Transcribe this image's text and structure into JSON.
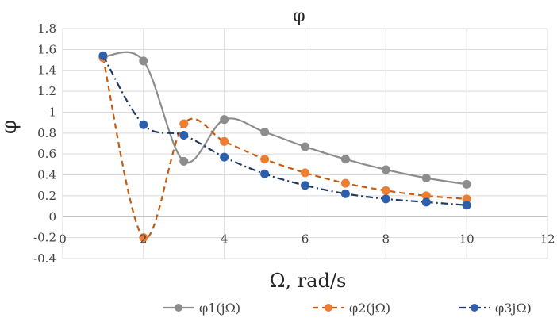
{
  "chart_data": {
    "type": "line",
    "title": "φ",
    "xlabel": "Ω, rad/s",
    "ylabel": "φ",
    "xlim": [
      0,
      12
    ],
    "ylim": [
      -0.4,
      1.8
    ],
    "x_ticks": [
      "0",
      "2",
      "4",
      "6",
      "8",
      "10",
      "12"
    ],
    "y_ticks": [
      "-0.4",
      "-0.2",
      "0",
      "0.2",
      "0.4",
      "0.6",
      "0.8",
      "1",
      "1.2",
      "1.4",
      "1.6",
      "1.8"
    ],
    "grid": true,
    "legend_position": "bottom",
    "x": [
      1,
      2,
      3,
      4,
      5,
      6,
      7,
      8,
      9,
      10
    ],
    "series": [
      {
        "name": "φ1(jΩ)",
        "color": "#8c8c8c",
        "style": "solid",
        "values": [
          1.53,
          1.49,
          0.53,
          0.93,
          0.81,
          0.67,
          0.55,
          0.45,
          0.37,
          0.31
        ]
      },
      {
        "name": "φ2(jΩ)",
        "color": "#c55a11",
        "style": "dashed",
        "marker_color": "#ed7d31",
        "values": [
          1.52,
          -0.2,
          0.89,
          0.72,
          0.55,
          0.42,
          0.32,
          0.25,
          0.2,
          0.17
        ]
      },
      {
        "name": "φ3jΩ)",
        "color": "#1f3864",
        "style": "dashdot",
        "marker_color": "#2e5fac",
        "values": [
          1.54,
          0.88,
          0.78,
          0.57,
          0.41,
          0.3,
          0.22,
          0.17,
          0.14,
          0.11
        ]
      }
    ]
  }
}
